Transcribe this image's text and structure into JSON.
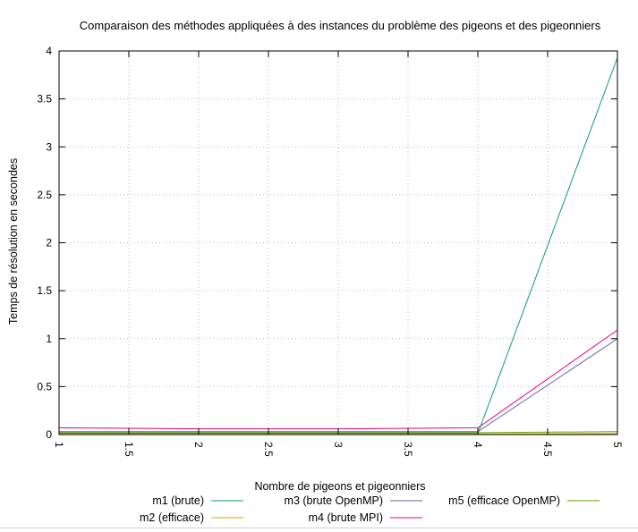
{
  "chart_data": {
    "type": "line",
    "title": "Comparaison des méthodes appliquées à des instances du problème des pigeons et des pigeonniers",
    "xlabel": "Nombre de pigeons et pigeonniers",
    "ylabel": "Temps de résolution en secondes",
    "xlim": [
      1,
      5
    ],
    "ylim": [
      0,
      4
    ],
    "x_ticks": [
      "1",
      "1.5",
      "2",
      "2.5",
      "3",
      "3.5",
      "4",
      "4.5",
      "5"
    ],
    "y_ticks": [
      "0",
      "0.5",
      "1",
      "1.5",
      "2",
      "2.5",
      "3",
      "3.5",
      "4"
    ],
    "grid": true,
    "legend_position": "bottom",
    "x": [
      1,
      2,
      3,
      4,
      5
    ],
    "series": [
      {
        "name": "m1 (brute)",
        "color": "#009e73",
        "values": [
          0.01,
          0.01,
          0.01,
          0.01,
          3.93
        ]
      },
      {
        "name": "m2 (efficace)",
        "color": "#e69f00",
        "values": [
          0.005,
          0.005,
          0.005,
          0.005,
          0.01
        ]
      },
      {
        "name": "m3 (brute OpenMP)",
        "color": "#6c5fa8",
        "values": [
          0.03,
          0.03,
          0.03,
          0.03,
          1.0
        ]
      },
      {
        "name": "m4 (brute MPI)",
        "color": "#e5007e",
        "values": [
          0.07,
          0.06,
          0.06,
          0.07,
          1.09
        ]
      },
      {
        "name": "m5 (efficace OpenMP)",
        "color": "#5aa000",
        "values": [
          0.02,
          0.02,
          0.02,
          0.02,
          0.03
        ]
      }
    ]
  }
}
